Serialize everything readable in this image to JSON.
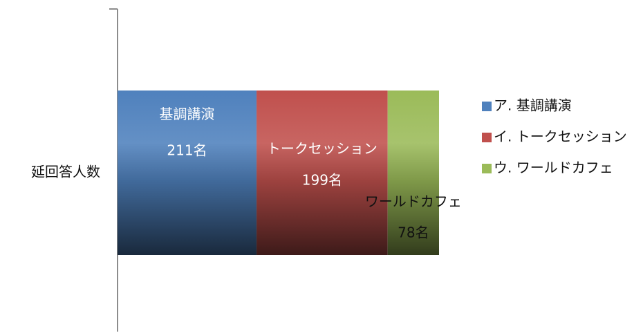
{
  "chart_data": {
    "type": "bar",
    "orientation": "horizontal",
    "stacked": true,
    "categories": [
      "延回答人数"
    ],
    "series": [
      {
        "name": "ア. 基調講演",
        "segment_label": "基調講演",
        "value_label": "211名",
        "values": [
          211
        ],
        "color": "#4F81BD"
      },
      {
        "name": "イ. トークセッション",
        "segment_label": "トークセッション",
        "value_label": "199名",
        "values": [
          199
        ],
        "color": "#C0504D"
      },
      {
        "name": "ウ. ワールドカフェ",
        "segment_label": "ワールドカフェ",
        "value_label": "78名",
        "values": [
          78
        ],
        "color": "#9BBB59"
      }
    ],
    "xlim": [
      0,
      488
    ],
    "legend": "right",
    "grid": false
  }
}
